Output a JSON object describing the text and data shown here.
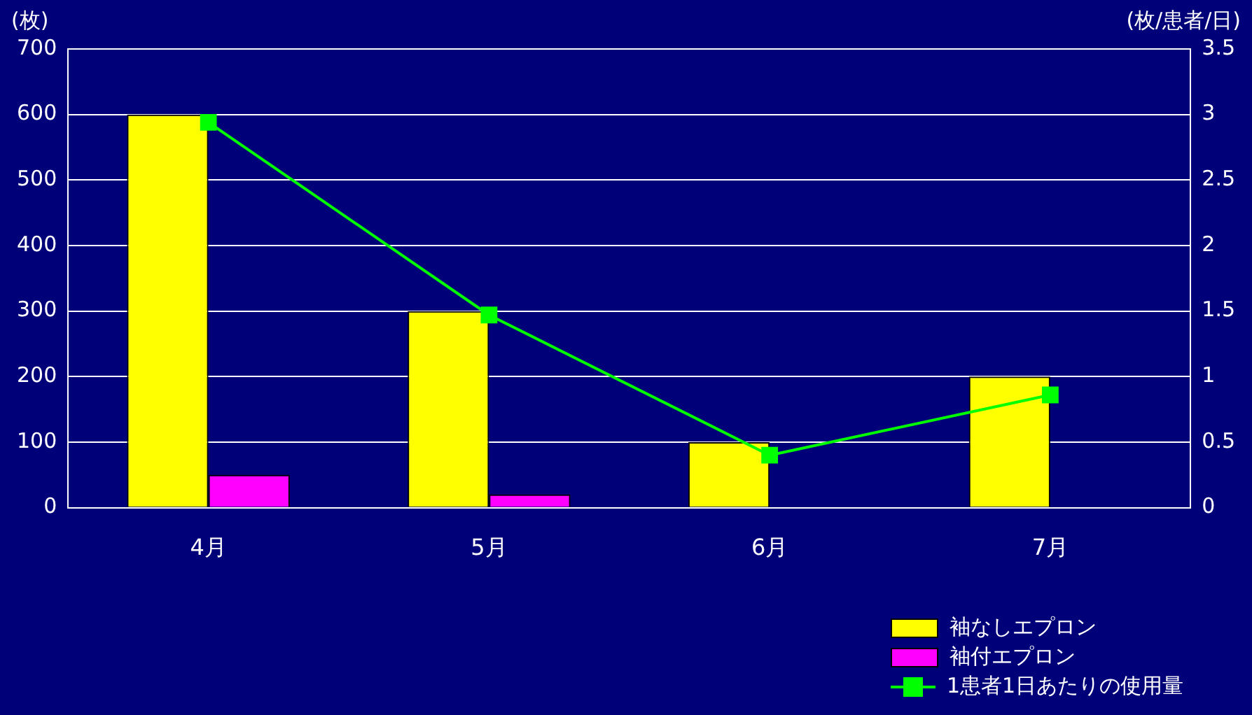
{
  "chart_data": {
    "type": "bar",
    "ylabel": "(枚)",
    "y2label": "(枚/患者/日)",
    "categories": [
      "4月",
      "5月",
      "6月",
      "7月"
    ],
    "series": [
      {
        "name": "袖なしエプロン",
        "color": "#ffff00",
        "values": [
          600,
          300,
          100,
          200
        ]
      },
      {
        "name": "袖付エプロン",
        "color": "#ff00ff",
        "values": [
          50,
          20,
          0,
          0
        ]
      },
      {
        "name": "1患者1日あたりの使用量",
        "type": "line",
        "axis": "y2",
        "color": "#00ff00",
        "values": [
          2.94,
          1.47,
          0.4,
          0.86
        ]
      }
    ],
    "ylim": [
      0,
      700
    ],
    "yticks": [
      0,
      100,
      200,
      300,
      400,
      500,
      600,
      700
    ],
    "y2lim": [
      0,
      3.5
    ],
    "y2ticks": [
      0,
      0.5,
      1,
      1.5,
      2,
      2.5,
      3,
      3.5
    ],
    "grid": "y",
    "legend": "bottom right",
    "marker": "square",
    "line_style": "solid"
  }
}
